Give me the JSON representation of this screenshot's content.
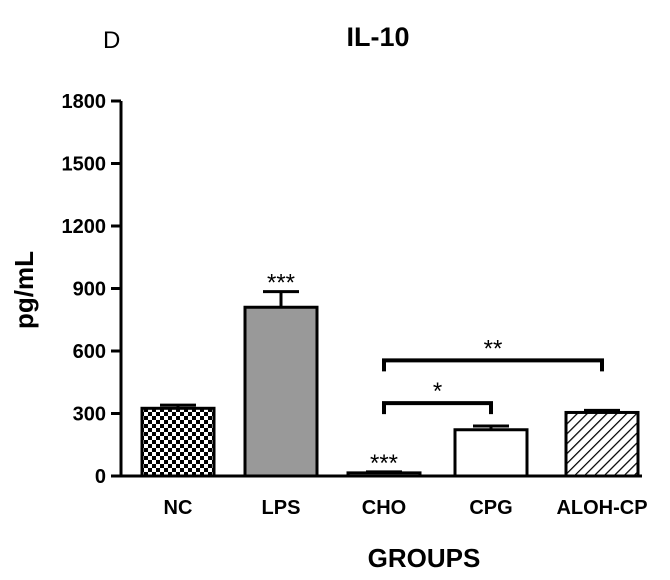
{
  "panel_label": "D",
  "chart_data": {
    "type": "bar",
    "title": "IL-10",
    "xlabel": "GROUPS",
    "ylabel": "pg/mL",
    "ylim": [
      0,
      1800
    ],
    "yticks": [
      "0",
      "300",
      "600",
      "900",
      "1200",
      "1500",
      "1800"
    ],
    "categories": [
      "NC",
      "LPS",
      "CHO",
      "CPG",
      "ALOH-CP"
    ],
    "values": [
      325,
      810,
      15,
      222,
      305
    ],
    "errors": [
      15,
      75,
      5,
      18,
      10
    ],
    "fills": [
      "checker",
      "#999999",
      "#ffffff",
      "#ffffff",
      "diagonal-hatch"
    ],
    "significance": [
      {
        "category": "LPS",
        "label": "***"
      },
      {
        "category": "CHO",
        "label": "***"
      }
    ],
    "brackets": [
      {
        "from": "CHO",
        "to": "CPG",
        "label": "*",
        "level": 350
      },
      {
        "from": "CHO",
        "to": "ALOH-CP",
        "label": "**",
        "level": 555
      }
    ],
    "grid": false,
    "legend": "none"
  }
}
